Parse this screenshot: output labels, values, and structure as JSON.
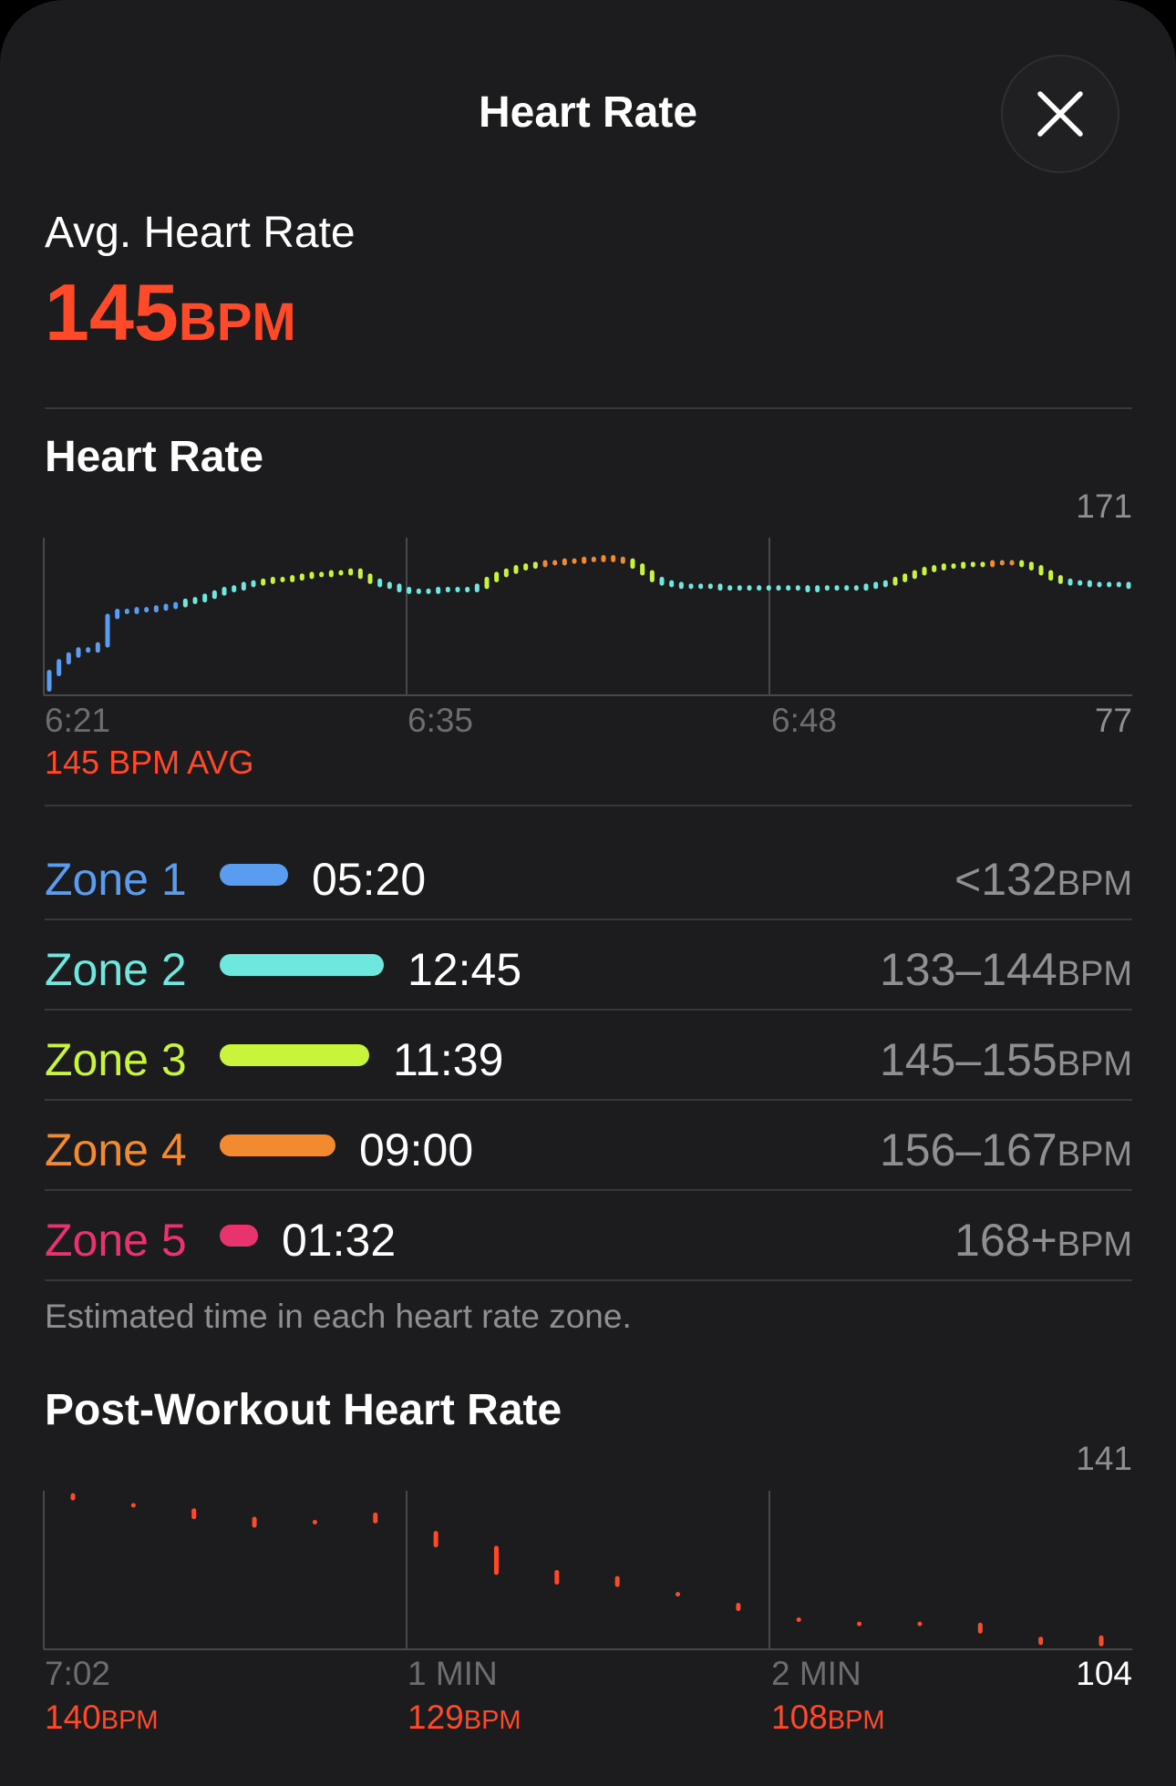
{
  "header": {
    "title": "Heart Rate"
  },
  "summary": {
    "label": "Avg. Heart Rate",
    "value": "145",
    "unit": "BPM"
  },
  "heart_rate_chart": {
    "title": "Heart Rate",
    "y_max_label": "171",
    "y_min_label": "77",
    "x_labels": [
      "6:21",
      "6:35",
      "6:48"
    ],
    "avg_caption": "145 BPM AVG"
  },
  "zones": [
    {
      "name": "Zone 1",
      "time": "05:20",
      "range": "<132",
      "unit": "BPM",
      "color": "#5a9cf0",
      "minutes": 5.33
    },
    {
      "name": "Zone 2",
      "time": "12:45",
      "range": "133–144",
      "unit": "BPM",
      "color": "#6ee8df",
      "minutes": 12.75
    },
    {
      "name": "Zone 3",
      "time": "11:39",
      "range": "145–155",
      "unit": "BPM",
      "color": "#c8f53b",
      "minutes": 11.65
    },
    {
      "name": "Zone 4",
      "time": "09:00",
      "range": "156–167",
      "unit": "BPM",
      "color": "#f28a30",
      "minutes": 9.0
    },
    {
      "name": "Zone 5",
      "time": "01:32",
      "range": "168+",
      "unit": "BPM",
      "color": "#e8336e",
      "minutes": 1.53
    }
  ],
  "zones_caption": "Estimated time in each heart rate zone.",
  "post_workout": {
    "title": "Post-Workout Heart Rate",
    "y_max_label": "141",
    "y_min_label": "104",
    "x_labels": [
      "7:02",
      "1 MIN",
      "2 MIN"
    ],
    "readings": [
      {
        "value": "140",
        "unit": "BPM"
      },
      {
        "value": "129",
        "unit": "BPM"
      },
      {
        "value": "108",
        "unit": "BPM"
      }
    ]
  },
  "chart_data": [
    {
      "type": "scatter",
      "title": "Heart Rate",
      "ylim": [
        77,
        171
      ],
      "x_ticks": [
        "6:21",
        "6:35",
        "6:48"
      ],
      "x_range_minutes": [
        0,
        40.5
      ],
      "y_values": [
        90,
        97,
        101,
        104,
        104,
        107,
        124,
        127,
        127,
        128,
        128,
        129,
        130,
        131,
        133,
        134,
        136,
        138,
        140,
        141,
        143,
        144,
        145,
        146,
        146,
        147,
        148,
        149,
        149,
        150,
        150,
        151,
        148,
        145,
        143,
        142,
        140,
        139,
        139,
        139,
        140,
        140,
        140,
        140,
        142,
        146,
        149,
        151,
        153,
        154,
        155,
        156,
        156,
        157,
        157,
        158,
        158,
        159,
        158,
        157,
        154,
        150,
        146,
        144,
        143,
        142,
        142,
        142,
        142,
        141,
        141,
        141,
        141,
        141,
        141,
        141,
        141,
        141,
        140,
        141,
        141,
        141,
        141,
        141,
        142,
        143,
        144,
        146,
        148,
        150,
        152,
        153,
        154,
        154,
        155,
        155,
        155,
        156,
        156,
        156,
        155,
        153,
        150,
        147,
        145,
        144,
        144,
        143,
        143,
        143,
        143,
        142
      ]
    },
    {
      "type": "scatter",
      "title": "Post-Workout Heart Rate",
      "ylim": [
        104,
        141
      ],
      "x_ticks": [
        "7:02",
        "1 MIN",
        "2 MIN"
      ],
      "x_range_minutes": [
        0,
        3
      ],
      "y_values": [
        140,
        138,
        136,
        134,
        134,
        135,
        130,
        125,
        121,
        120,
        117,
        114,
        111,
        110,
        110,
        109,
        106,
        106
      ]
    }
  ]
}
